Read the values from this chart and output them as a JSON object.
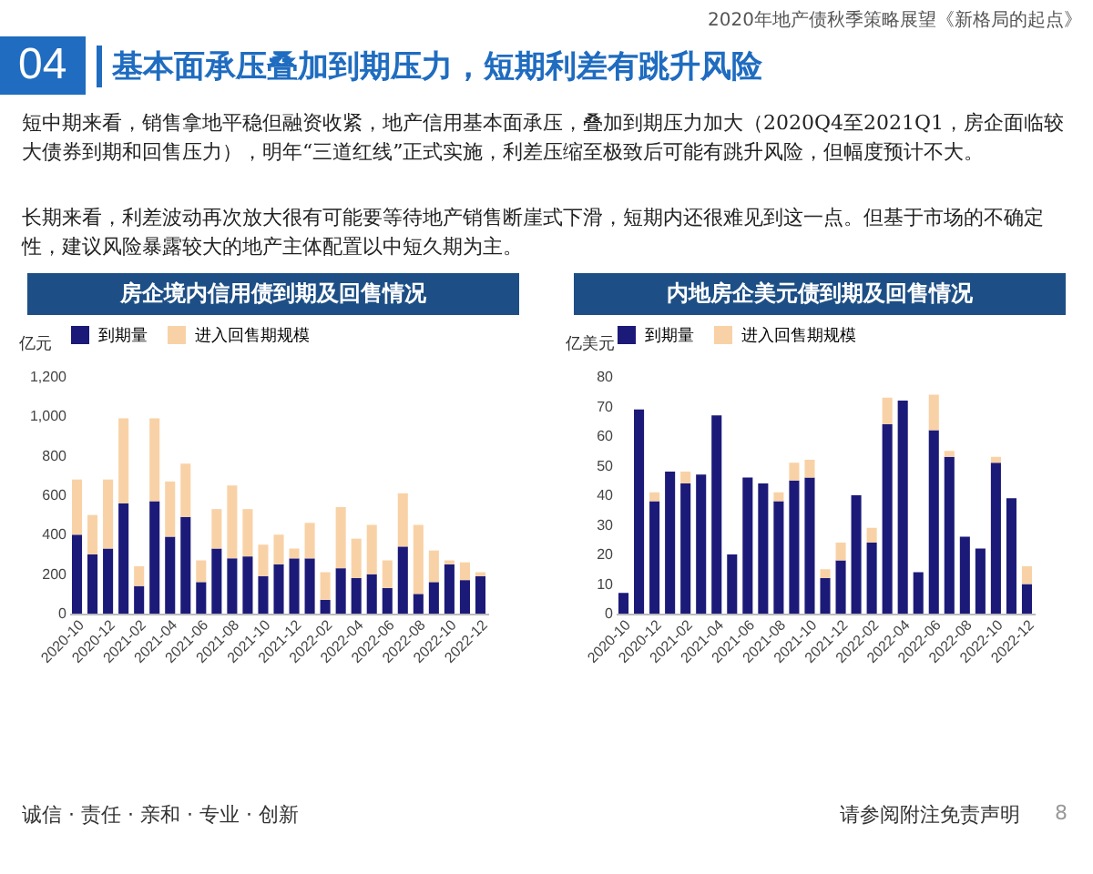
{
  "chart_data": [
    {
      "type": "other",
      "title": "基本面承压叠加到期压力，短期利差有跳升风险",
      "annotations": [
        "04",
        "2020年地产债秋季策略展望《新格局的起点》",
        "短中期来看，销售拿地平稳但融资收紧，地产信用基本面承压，叠加到期压力加大（2020Q4至2021Q1，房企面临较大债券到期和回售压力），明年“三道红线”正式实施，利差压缩至极致后可能有跳升风险，但幅度预计不大。",
        "长期来看，利差波动再次放大很有可能要等待地产销售断崖式下滑，短期内还很难见到这一点。但基于市场的不确定性，建议风险暴露较大的地产主体配置以中短久期为主。",
        "诚信 · 责任 · 亲和 · 专业 · 创新",
        "请参阅附注免责声明",
        "8"
      ]
    },
    {
      "type": "bar",
      "stacked": true,
      "title": "房企境内信用债到期及回售情况",
      "ylabel": "亿元",
      "legend": "top",
      "categories": [
        "2020-10",
        null,
        "2020-12",
        null,
        "2021-02",
        null,
        "2021-04",
        null,
        "2021-06",
        null,
        "2021-08",
        null,
        "2021-10",
        null,
        "2021-12",
        null,
        "2022-02",
        null,
        "2022-04",
        null,
        "2022-06",
        null,
        "2022-08",
        null,
        "2022-10",
        null,
        "2022-12"
      ],
      "ylim": [
        0,
        1200
      ],
      "yticks": [
        0,
        200,
        400,
        600,
        800,
        {
          "value": 1000,
          "label": "1,000"
        },
        {
          "value": 1200,
          "label": "1,200"
        }
      ],
      "series": [
        {
          "name": "到期量",
          "color": "#1c1a78",
          "values": [
            400,
            300,
            330,
            560,
            140,
            570,
            390,
            490,
            160,
            330,
            280,
            290,
            190,
            250,
            280,
            280,
            70,
            230,
            180,
            200,
            130,
            340,
            100,
            160,
            250,
            170,
            190
          ]
        },
        {
          "name": "进入回售期规模",
          "color": "#f8d2a6",
          "values": [
            280,
            200,
            350,
            430,
            100,
            420,
            280,
            270,
            110,
            200,
            370,
            240,
            160,
            150,
            50,
            180,
            140,
            310,
            200,
            250,
            140,
            270,
            350,
            160,
            20,
            90,
            20
          ]
        }
      ]
    },
    {
      "type": "bar",
      "stacked": true,
      "title": "内地房企美元债到期及回售情况",
      "ylabel": "亿美元",
      "legend": "top",
      "categories": [
        "2020-10",
        null,
        "2020-12",
        null,
        "2021-02",
        null,
        "2021-04",
        null,
        "2021-06",
        null,
        "2021-08",
        null,
        "2021-10",
        null,
        "2021-12",
        null,
        "2022-02",
        null,
        "2022-04",
        null,
        "2022-06",
        null,
        "2022-08",
        null,
        "2022-10",
        null,
        "2022-12"
      ],
      "ylim": [
        0,
        80
      ],
      "yticks": [
        0,
        10,
        20,
        30,
        40,
        50,
        60,
        70,
        80
      ],
      "series": [
        {
          "name": "到期量",
          "color": "#1c1a78",
          "values": [
            7,
            69,
            38,
            48,
            44,
            47,
            67,
            20,
            46,
            44,
            38,
            45,
            46,
            12,
            18,
            40,
            24,
            64,
            72,
            14,
            62,
            53,
            26,
            22,
            51,
            39,
            10
          ]
        },
        {
          "name": "进入回售期规模",
          "color": "#f8d2a6",
          "values": [
            0,
            0,
            3,
            0,
            4,
            0,
            0,
            0,
            0,
            0,
            3,
            6,
            6,
            3,
            6,
            0,
            5,
            9,
            0,
            0,
            12,
            2,
            0,
            0,
            2,
            0,
            6
          ]
        }
      ]
    }
  ]
}
